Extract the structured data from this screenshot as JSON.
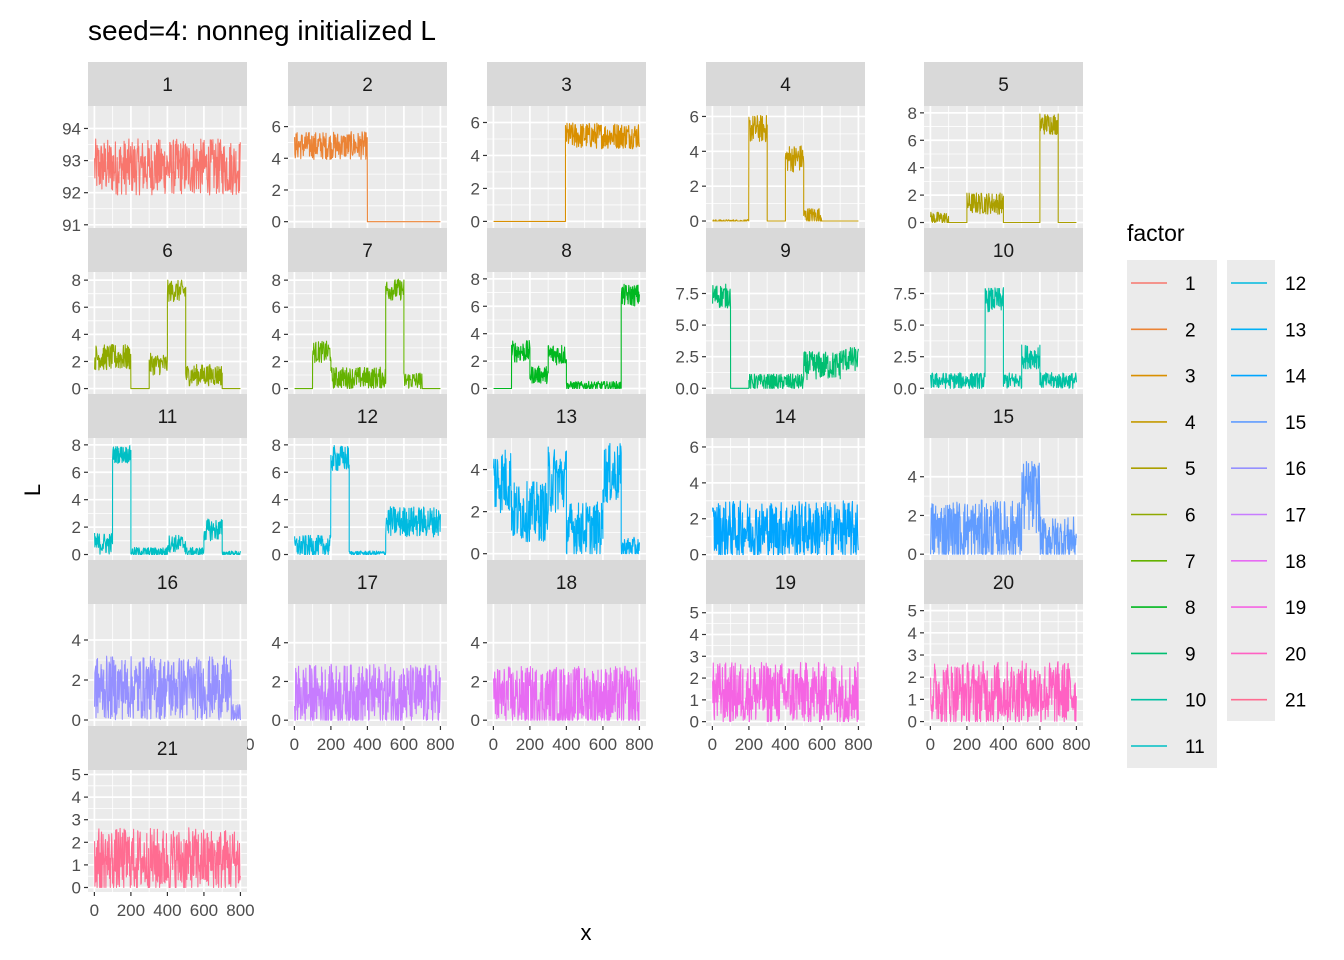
{
  "chart_data": {
    "type": "line",
    "title": "seed=4: nonneg initialized L",
    "xlabel": "x",
    "ylabel": "L",
    "facet_scales": "free_y",
    "x_range": [
      1,
      800
    ],
    "x_ticks": [
      "0",
      "200",
      "400",
      "600",
      "800"
    ],
    "grid": true,
    "legend": {
      "title": "factor",
      "placement": "right",
      "columns": 2
    },
    "panels": [
      {
        "label": "1",
        "color": "#F8766D",
        "ylim": [
          90.9,
          94.7
        ],
        "yticks": [
          91,
          92,
          93,
          94
        ],
        "ytick_labels": [
          "91",
          "92",
          "93",
          "94"
        ],
        "segments": [
          {
            "from": 0,
            "to": 800,
            "level": 92.8,
            "noise": 0.55
          }
        ]
      },
      {
        "label": "2",
        "color": "#EB8335",
        "ylim": [
          -0.4,
          7.3
        ],
        "yticks": [
          0,
          2,
          4,
          6
        ],
        "ytick_labels": [
          "0",
          "2",
          "4",
          "6"
        ],
        "segments": [
          {
            "from": 0,
            "to": 400,
            "level": 4.8,
            "noise": 0.55
          },
          {
            "from": 400,
            "to": 800,
            "level": 0,
            "noise": 0
          }
        ]
      },
      {
        "label": "3",
        "color": "#D98F00",
        "ylim": [
          -0.4,
          7.0
        ],
        "yticks": [
          0,
          2,
          4,
          6
        ],
        "ytick_labels": [
          "0",
          "2",
          "4",
          "6"
        ],
        "segments": [
          {
            "from": 0,
            "to": 395,
            "level": 0,
            "noise": 0
          },
          {
            "from": 395,
            "to": 800,
            "level": 5.2,
            "noise": 0.5
          }
        ]
      },
      {
        "label": "4",
        "color": "#C49A00",
        "ylim": [
          -0.4,
          6.6
        ],
        "yticks": [
          0,
          2,
          4,
          6
        ],
        "ytick_labels": [
          "0",
          "2",
          "4",
          "6"
        ],
        "segments": [
          {
            "from": 0,
            "to": 200,
            "level": 0,
            "noise": 0.05
          },
          {
            "from": 200,
            "to": 300,
            "level": 5.3,
            "noise": 0.5
          },
          {
            "from": 300,
            "to": 400,
            "level": 0,
            "noise": 0
          },
          {
            "from": 400,
            "to": 500,
            "level": 3.6,
            "noise": 0.5
          },
          {
            "from": 500,
            "to": 600,
            "level": 0.3,
            "noise": 0.3
          },
          {
            "from": 600,
            "to": 800,
            "level": 0,
            "noise": 0
          }
        ]
      },
      {
        "label": "5",
        "color": "#AB9F00",
        "ylim": [
          -0.4,
          8.5
        ],
        "yticks": [
          0,
          2,
          4,
          6,
          8
        ],
        "ytick_labels": [
          "0",
          "2",
          "4",
          "6",
          "8"
        ],
        "segments": [
          {
            "from": 0,
            "to": 100,
            "level": 0.3,
            "noise": 0.3
          },
          {
            "from": 100,
            "to": 200,
            "level": 0,
            "noise": 0
          },
          {
            "from": 200,
            "to": 400,
            "level": 1.4,
            "noise": 0.5
          },
          {
            "from": 400,
            "to": 600,
            "level": 0,
            "noise": 0
          },
          {
            "from": 600,
            "to": 700,
            "level": 7.2,
            "noise": 0.5
          },
          {
            "from": 700,
            "to": 800,
            "level": 0,
            "noise": 0
          }
        ]
      },
      {
        "label": "6",
        "color": "#8FA900",
        "ylim": [
          -0.4,
          8.6
        ],
        "yticks": [
          0,
          2,
          4,
          6,
          8
        ],
        "ytick_labels": [
          "0",
          "2",
          "4",
          "6",
          "8"
        ],
        "segments": [
          {
            "from": 0,
            "to": 200,
            "level": 2.3,
            "noise": 0.6
          },
          {
            "from": 200,
            "to": 300,
            "level": 0,
            "noise": 0
          },
          {
            "from": 300,
            "to": 400,
            "level": 1.8,
            "noise": 0.5
          },
          {
            "from": 400,
            "to": 500,
            "level": 7.2,
            "noise": 0.5
          },
          {
            "from": 500,
            "to": 700,
            "level": 1.0,
            "noise": 0.5
          },
          {
            "from": 700,
            "to": 800,
            "level": 0,
            "noise": 0
          }
        ]
      },
      {
        "label": "7",
        "color": "#64B200",
        "ylim": [
          -0.4,
          8.6
        ],
        "yticks": [
          0,
          2,
          4,
          6,
          8
        ],
        "ytick_labels": [
          "0",
          "2",
          "4",
          "6",
          "8"
        ],
        "segments": [
          {
            "from": 0,
            "to": 100,
            "level": 0,
            "noise": 0
          },
          {
            "from": 100,
            "to": 200,
            "level": 2.7,
            "noise": 0.5
          },
          {
            "from": 200,
            "to": 500,
            "level": 0.8,
            "noise": 0.5
          },
          {
            "from": 500,
            "to": 600,
            "level": 7.3,
            "noise": 0.5
          },
          {
            "from": 600,
            "to": 700,
            "level": 0.6,
            "noise": 0.4
          },
          {
            "from": 700,
            "to": 800,
            "level": 0,
            "noise": 0
          }
        ]
      },
      {
        "label": "8",
        "color": "#00B81F",
        "ylim": [
          -0.4,
          8.5
        ],
        "yticks": [
          0,
          2,
          4,
          6,
          8
        ],
        "ytick_labels": [
          "0",
          "2",
          "4",
          "6",
          "8"
        ],
        "segments": [
          {
            "from": 0,
            "to": 100,
            "level": 0,
            "noise": 0
          },
          {
            "from": 100,
            "to": 200,
            "level": 2.7,
            "noise": 0.5
          },
          {
            "from": 200,
            "to": 300,
            "level": 1.0,
            "noise": 0.4
          },
          {
            "from": 300,
            "to": 400,
            "level": 2.5,
            "noise": 0.5
          },
          {
            "from": 400,
            "to": 700,
            "level": 0.2,
            "noise": 0.2
          },
          {
            "from": 700,
            "to": 800,
            "level": 6.8,
            "noise": 0.5
          }
        ]
      },
      {
        "label": "9",
        "color": "#00BE70",
        "ylim": [
          -0.45,
          9.2
        ],
        "yticks": [
          0,
          2.5,
          5,
          7.5
        ],
        "ytick_labels": [
          "0.0",
          "2.5",
          "5.0",
          "7.5"
        ],
        "segments": [
          {
            "from": 0,
            "to": 100,
            "level": 7.3,
            "noise": 0.6
          },
          {
            "from": 100,
            "to": 200,
            "level": 0,
            "noise": 0
          },
          {
            "from": 200,
            "to": 300,
            "level": 0.5,
            "noise": 0.4
          },
          {
            "from": 300,
            "to": 500,
            "level": 0.5,
            "noise": 0.4
          },
          {
            "from": 500,
            "to": 700,
            "level": 1.8,
            "noise": 0.7
          },
          {
            "from": 700,
            "to": 800,
            "level": 2.3,
            "noise": 0.6
          }
        ]
      },
      {
        "label": "10",
        "color": "#00C1A3",
        "ylim": [
          -0.45,
          9.2
        ],
        "yticks": [
          0,
          2.5,
          5,
          7.5
        ],
        "ytick_labels": [
          "0.0",
          "2.5",
          "5.0",
          "7.5"
        ],
        "segments": [
          {
            "from": 0,
            "to": 300,
            "level": 0.6,
            "noise": 0.4
          },
          {
            "from": 300,
            "to": 400,
            "level": 7.0,
            "noise": 0.6
          },
          {
            "from": 400,
            "to": 500,
            "level": 0.6,
            "noise": 0.4
          },
          {
            "from": 500,
            "to": 600,
            "level": 2.5,
            "noise": 0.6
          },
          {
            "from": 600,
            "to": 800,
            "level": 0.6,
            "noise": 0.4
          }
        ]
      },
      {
        "label": "11",
        "color": "#00BFC4",
        "ylim": [
          -0.4,
          8.5
        ],
        "yticks": [
          0,
          2,
          4,
          6,
          8
        ],
        "ytick_labels": [
          "0",
          "2",
          "4",
          "6",
          "8"
        ],
        "segments": [
          {
            "from": 0,
            "to": 100,
            "level": 0.8,
            "noise": 0.5
          },
          {
            "from": 100,
            "to": 200,
            "level": 7.3,
            "noise": 0.4
          },
          {
            "from": 200,
            "to": 400,
            "level": 0.2,
            "noise": 0.2
          },
          {
            "from": 400,
            "to": 500,
            "level": 0.8,
            "noise": 0.4
          },
          {
            "from": 500,
            "to": 600,
            "level": 0.2,
            "noise": 0.2
          },
          {
            "from": 600,
            "to": 700,
            "level": 1.8,
            "noise": 0.5
          },
          {
            "from": 700,
            "to": 800,
            "level": 0.1,
            "noise": 0.1
          }
        ]
      },
      {
        "label": "12",
        "color": "#00BAE0",
        "ylim": [
          -0.4,
          8.5
        ],
        "yticks": [
          0,
          2,
          4,
          6,
          8
        ],
        "ytick_labels": [
          "0",
          "2",
          "4",
          "6",
          "8"
        ],
        "segments": [
          {
            "from": 0,
            "to": 200,
            "level": 0.6,
            "noise": 0.5
          },
          {
            "from": 200,
            "to": 300,
            "level": 7.0,
            "noise": 0.6
          },
          {
            "from": 300,
            "to": 500,
            "level": 0.1,
            "noise": 0.1
          },
          {
            "from": 500,
            "to": 800,
            "level": 2.4,
            "noise": 0.7
          }
        ]
      },
      {
        "label": "13",
        "color": "#00B0F6",
        "ylim": [
          -0.3,
          5.5
        ],
        "yticks": [
          0,
          2,
          4
        ],
        "ytick_labels": [
          "0",
          "2",
          "4"
        ],
        "segments": [
          {
            "from": 0,
            "to": 100,
            "level": 3.5,
            "noise": 1.0
          },
          {
            "from": 100,
            "to": 300,
            "level": 2.0,
            "noise": 0.9
          },
          {
            "from": 300,
            "to": 400,
            "level": 3.5,
            "noise": 1.0
          },
          {
            "from": 400,
            "to": 600,
            "level": 1.2,
            "noise": 0.8
          },
          {
            "from": 600,
            "to": 700,
            "level": 3.8,
            "noise": 0.9
          },
          {
            "from": 700,
            "to": 800,
            "level": 0.3,
            "noise": 0.3
          }
        ]
      },
      {
        "label": "14",
        "color": "#00A5FF",
        "ylim": [
          -0.3,
          6.5
        ],
        "yticks": [
          0,
          2,
          4,
          6
        ],
        "ytick_labels": [
          "0",
          "2",
          "4",
          "6"
        ],
        "segments": [
          {
            "from": 0,
            "to": 800,
            "level": 1.4,
            "noise": 1.0
          }
        ]
      },
      {
        "label": "15",
        "color": "#619CFF",
        "ylim": [
          -0.3,
          6.0
        ],
        "yticks": [
          0,
          2,
          4
        ],
        "ytick_labels": [
          "0",
          "2",
          "4"
        ],
        "segments": [
          {
            "from": 0,
            "to": 500,
            "level": 1.2,
            "noise": 1.0
          },
          {
            "from": 500,
            "to": 600,
            "level": 3.0,
            "noise": 1.2
          },
          {
            "from": 600,
            "to": 800,
            "level": 0.8,
            "noise": 0.7
          }
        ]
      },
      {
        "label": "16",
        "color": "#9590FF",
        "ylim": [
          -0.3,
          5.8
        ],
        "yticks": [
          0,
          2,
          4
        ],
        "ytick_labels": [
          "0",
          "2",
          "4"
        ],
        "segments": [
          {
            "from": 0,
            "to": 750,
            "level": 1.6,
            "noise": 1.0
          },
          {
            "from": 750,
            "to": 800,
            "level": 0.3,
            "noise": 0.3
          }
        ]
      },
      {
        "label": "17",
        "color": "#C77CFF",
        "ylim": [
          -0.3,
          6.0
        ],
        "yticks": [
          0,
          2,
          4
        ],
        "ytick_labels": [
          "0",
          "2",
          "4"
        ],
        "segments": [
          {
            "from": 0,
            "to": 800,
            "level": 1.3,
            "noise": 1.0
          }
        ]
      },
      {
        "label": "18",
        "color": "#E76BF3",
        "ylim": [
          -0.3,
          6.0
        ],
        "yticks": [
          0,
          2,
          4
        ],
        "ytick_labels": [
          "0",
          "2",
          "4"
        ],
        "segments": [
          {
            "from": 0,
            "to": 800,
            "level": 1.2,
            "noise": 1.0
          }
        ]
      },
      {
        "label": "19",
        "color": "#F564E3",
        "ylim": [
          -0.2,
          5.4
        ],
        "yticks": [
          0,
          1,
          2,
          3,
          4,
          5
        ],
        "ytick_labels": [
          "0",
          "1",
          "2",
          "3",
          "4",
          "5"
        ],
        "segments": [
          {
            "from": 0,
            "to": 800,
            "level": 1.3,
            "noise": 0.9
          }
        ]
      },
      {
        "label": "20",
        "color": "#FF61C3",
        "ylim": [
          -0.2,
          5.3
        ],
        "yticks": [
          0,
          1,
          2,
          3,
          4,
          5
        ],
        "ytick_labels": [
          "0",
          "1",
          "2",
          "3",
          "4",
          "5"
        ],
        "segments": [
          {
            "from": 0,
            "to": 800,
            "level": 1.3,
            "noise": 0.9
          }
        ]
      },
      {
        "label": "21",
        "color": "#FF6C91",
        "ylim": [
          -0.2,
          5.2
        ],
        "yticks": [
          0,
          1,
          2,
          3,
          4,
          5
        ],
        "ytick_labels": [
          "0",
          "1",
          "2",
          "3",
          "4",
          "5"
        ],
        "segments": [
          {
            "from": 0,
            "to": 800,
            "level": 1.2,
            "noise": 0.9
          }
        ]
      }
    ]
  }
}
